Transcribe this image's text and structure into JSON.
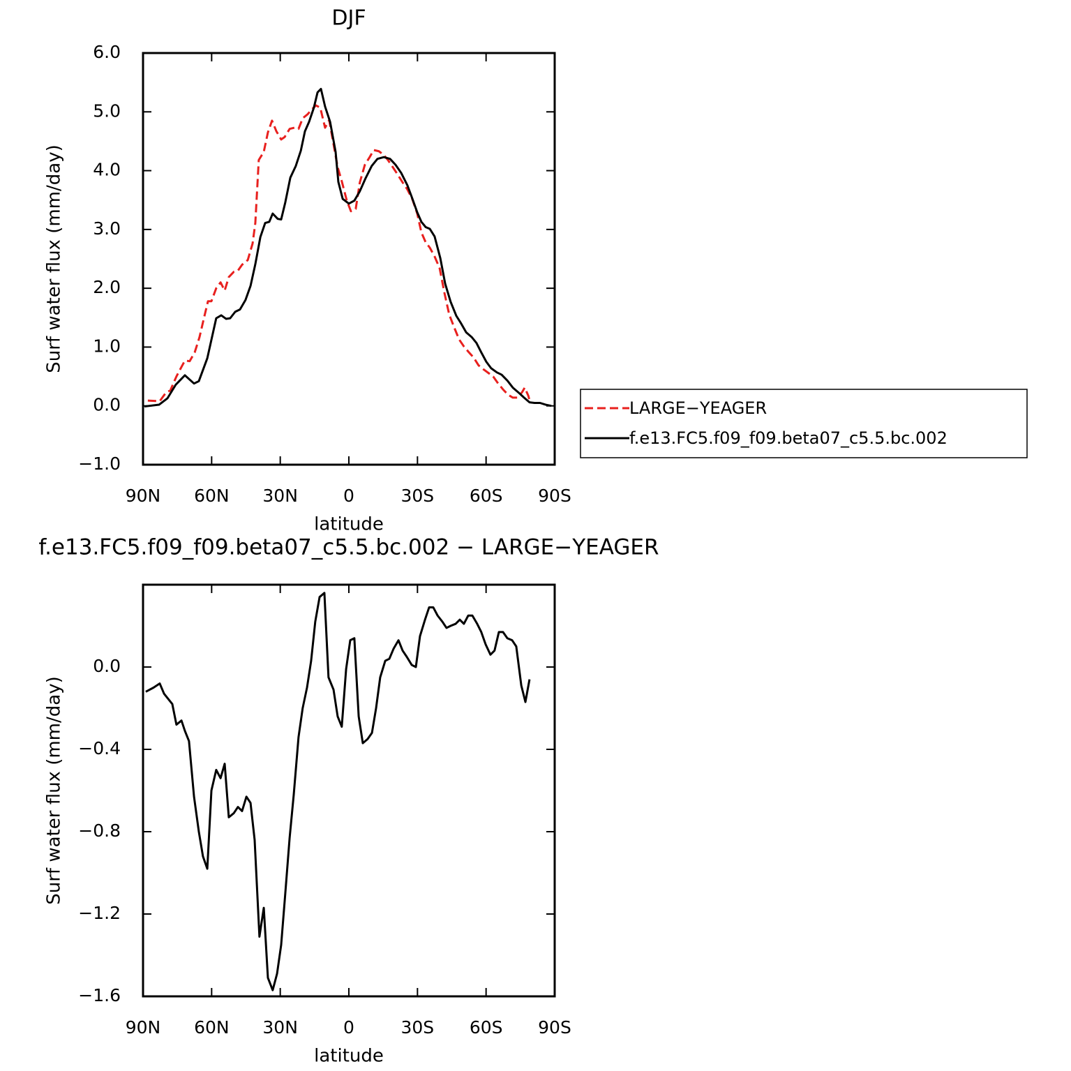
{
  "chart_data": [
    {
      "type": "line",
      "title": "DJF",
      "ylabel": "Surf water flux (mm/day)",
      "xlabel": "latitude",
      "xlim": [
        90,
        -90
      ],
      "xticks": [
        {
          "value": 90,
          "label": "90N"
        },
        {
          "value": 60,
          "label": "60N"
        },
        {
          "value": 30,
          "label": "30N"
        },
        0,
        {
          "value": -30,
          "label": "30S"
        },
        {
          "value": -60,
          "label": "60S"
        },
        {
          "value": -90,
          "label": "90S"
        }
      ],
      "ylim": [
        -1.0,
        6.0
      ],
      "yticks": [
        {
          "value": -1,
          "label": "−1.0"
        },
        {
          "value": 0,
          "label": "0.0"
        },
        {
          "value": 1,
          "label": "1.0"
        },
        {
          "value": 2,
          "label": "2.0"
        },
        {
          "value": 3,
          "label": "3.0"
        },
        {
          "value": 4,
          "label": "4.0"
        },
        {
          "value": 5,
          "label": "5.0"
        },
        {
          "value": 6,
          "label": "6.0"
        }
      ],
      "legend": "right",
      "series": [
        {
          "name": "LARGE−YEAGER",
          "color": "#e8201e",
          "style": "dashed",
          "x": [
            87.9,
            82.7,
            79.9,
            78.1,
            75.4,
            73.5,
            71.7,
            69.6,
            67.4,
            65.3,
            63.5,
            61.6,
            60.1,
            58,
            56.1,
            54.3,
            52.5,
            50.3,
            48.5,
            46.7,
            44.2,
            42.1,
            40.9,
            39.4,
            37.2,
            35.4,
            33.6,
            31.7,
            29.6,
            28.1,
            25.9,
            23.8,
            22,
            20.2,
            18,
            16.2,
            14.4,
            12.5,
            10.4,
            8.6,
            6.7,
            4.9,
            3.1,
            0.9,
            -0.9,
            -3,
            -4.8,
            -7,
            -9.1,
            -10.9,
            -13.1,
            -15.2,
            -17.1,
            -19.2,
            -21.4,
            -23.5,
            -25.6,
            -27.8,
            -29.9,
            -31.7,
            -33.6,
            -35.4,
            -37.5,
            -39.7,
            -41.8,
            -43.9,
            -46.1,
            -48.2,
            -50.3,
            -52.5,
            -54.6,
            -56.7,
            -58.9,
            -61,
            -63.1,
            -65.3,
            -67.4,
            -69.6,
            -71.7,
            -73.8,
            -75.7,
            -76.9,
            -78.5,
            -79.3
          ],
          "values": [
            0.09,
            0.08,
            0.23,
            0.26,
            0.5,
            0.64,
            0.77,
            0.76,
            0.91,
            1.17,
            1.47,
            1.78,
            1.78,
            2.0,
            2.1,
            1.96,
            2.19,
            2.28,
            2.3,
            2.4,
            2.48,
            2.76,
            3.11,
            4.18,
            4.32,
            4.65,
            4.85,
            4.67,
            4.53,
            4.57,
            4.71,
            4.73,
            4.71,
            4.89,
            4.96,
            5.04,
            5.11,
            5.07,
            4.73,
            4.86,
            4.45,
            4.06,
            3.82,
            3.49,
            3.31,
            3.35,
            3.8,
            4.1,
            4.23,
            4.35,
            4.33,
            4.27,
            4.18,
            4.06,
            3.93,
            3.8,
            3.68,
            3.51,
            3.27,
            2.95,
            2.78,
            2.69,
            2.54,
            2.34,
            1.92,
            1.55,
            1.33,
            1.13,
            1.01,
            0.91,
            0.82,
            0.69,
            0.62,
            0.56,
            0.5,
            0.38,
            0.28,
            0.19,
            0.14,
            0.14,
            0.23,
            0.31,
            0.17,
            0.05
          ]
        },
        {
          "name": "f.e13.FC5.f09_f09.beta07_c5.5.bc.002",
          "color": "#000000",
          "style": "solid",
          "x": [
            89.4,
            83,
            79.3,
            75.7,
            71.7,
            67.7,
            65.6,
            61.9,
            58,
            55.8,
            53.7,
            51.9,
            49.7,
            47.6,
            45.2,
            43,
            40.9,
            38.7,
            36.6,
            34.8,
            33.3,
            31.1,
            29.6,
            27.8,
            25.6,
            23.2,
            21,
            19.2,
            17.4,
            15.3,
            13.7,
            12.2,
            10.4,
            8.2,
            5.8,
            4.6,
            2.7,
            0,
            -2.4,
            -4.8,
            -7.3,
            -10,
            -12.5,
            -15.3,
            -18,
            -20.4,
            -22.9,
            -25.6,
            -27.8,
            -29.9,
            -31.7,
            -33.6,
            -35.4,
            -37.5,
            -40,
            -42.1,
            -44.5,
            -47,
            -49.1,
            -51.3,
            -53.7,
            -55.8,
            -57.9,
            -60.1,
            -62.2,
            -64.7,
            -66.8,
            -69.3,
            -71.7,
            -74.1,
            -76.6,
            -79,
            -81.2,
            -83.6,
            -86.1,
            -88.5
          ],
          "values": [
            -0.01,
            0.02,
            0.13,
            0.36,
            0.52,
            0.38,
            0.42,
            0.81,
            1.49,
            1.54,
            1.48,
            1.49,
            1.6,
            1.64,
            1.8,
            2.04,
            2.41,
            2.87,
            3.11,
            3.13,
            3.27,
            3.18,
            3.17,
            3.46,
            3.88,
            4.08,
            4.34,
            4.67,
            4.83,
            5.07,
            5.33,
            5.39,
            5.09,
            4.83,
            4.32,
            3.81,
            3.52,
            3.44,
            3.49,
            3.65,
            3.87,
            4.08,
            4.2,
            4.23,
            4.2,
            4.1,
            3.96,
            3.75,
            3.52,
            3.29,
            3.13,
            3.04,
            3.01,
            2.88,
            2.51,
            2.08,
            1.77,
            1.53,
            1.4,
            1.25,
            1.17,
            1.07,
            0.91,
            0.75,
            0.64,
            0.57,
            0.53,
            0.43,
            0.31,
            0.23,
            0.14,
            0.06,
            0.05,
            0.05,
            0.02,
            0.0
          ]
        }
      ]
    },
    {
      "type": "line",
      "title": "f.e13.FC5.f09_f09.beta07_c5.5.bc.002 − LARGE−YEAGER",
      "ylabel": "Surf water flux (mm/day)",
      "xlabel": "latitude",
      "xlim": [
        90,
        -90
      ],
      "xticks": [
        {
          "value": 90,
          "label": "90N"
        },
        {
          "value": 60,
          "label": "60N"
        },
        {
          "value": 30,
          "label": "30N"
        },
        0,
        {
          "value": -30,
          "label": "30S"
        },
        {
          "value": -60,
          "label": "60S"
        },
        {
          "value": -90,
          "label": "90S"
        }
      ],
      "ylim": [
        -1.6,
        0.4
      ],
      "yticks": [
        {
          "value": -1.6,
          "label": "−1.6"
        },
        {
          "value": -1.2,
          "label": "−1.2"
        },
        {
          "value": -0.8,
          "label": "−0.8"
        },
        {
          "value": -0.4,
          "label": "−0.4"
        },
        {
          "value": 0,
          "label": "0.0"
        }
      ],
      "series": [
        {
          "color": "#000000",
          "style": "solid",
          "x": [
            88.8,
            85.4,
            82.7,
            80.8,
            77.2,
            75.4,
            73.2,
            71.7,
            69.9,
            67.7,
            65.6,
            63.8,
            61.9,
            60.1,
            58,
            56.1,
            54.3,
            52.5,
            50.3,
            48.5,
            46.7,
            44.8,
            43,
            41.2,
            39.1,
            37.2,
            35.4,
            33.3,
            31.4,
            29.6,
            27.8,
            25.9,
            24.1,
            22,
            20.2,
            18.3,
            16.5,
            14.7,
            12.8,
            10.7,
            8.9,
            6.7,
            4.9,
            3.1,
            1.2,
            -0.6,
            -2.4,
            -4.3,
            -6.1,
            -8.2,
            -10.1,
            -11.9,
            -13.7,
            -15.9,
            -17.7,
            -19.6,
            -21.7,
            -23.5,
            -25.3,
            -27.5,
            -29.3,
            -31.1,
            -33.3,
            -35.1,
            -36.9,
            -38.8,
            -40.9,
            -42.7,
            -44.5,
            -46.7,
            -48.5,
            -50.3,
            -52.2,
            -54,
            -56.1,
            -57.9,
            -59.8,
            -61.9,
            -63.7,
            -65.6,
            -67.4,
            -69.3,
            -71.4,
            -73.2,
            -75.4,
            -77.2,
            -79
          ],
          "values": [
            -0.12,
            -0.1,
            -0.08,
            -0.13,
            -0.18,
            -0.28,
            -0.26,
            -0.31,
            -0.36,
            -0.63,
            -0.8,
            -0.92,
            -0.98,
            -0.6,
            -0.5,
            -0.54,
            -0.47,
            -0.73,
            -0.71,
            -0.68,
            -0.7,
            -0.63,
            -0.66,
            -0.84,
            -1.31,
            -1.17,
            -1.51,
            -1.57,
            -1.49,
            -1.35,
            -1.1,
            -0.83,
            -0.62,
            -0.34,
            -0.2,
            -0.1,
            0.03,
            0.22,
            0.34,
            0.36,
            -0.05,
            -0.11,
            -0.24,
            -0.29,
            -0.01,
            0.13,
            0.14,
            -0.24,
            -0.37,
            -0.35,
            -0.32,
            -0.2,
            -0.05,
            0.03,
            0.04,
            0.09,
            0.13,
            0.08,
            0.05,
            0.01,
            0.0,
            0.15,
            0.23,
            0.29,
            0.29,
            0.25,
            0.22,
            0.19,
            0.2,
            0.21,
            0.23,
            0.21,
            0.25,
            0.25,
            0.21,
            0.17,
            0.11,
            0.06,
            0.08,
            0.17,
            0.17,
            0.14,
            0.13,
            0.1,
            -0.09,
            -0.17,
            -0.06
          ]
        }
      ]
    }
  ]
}
